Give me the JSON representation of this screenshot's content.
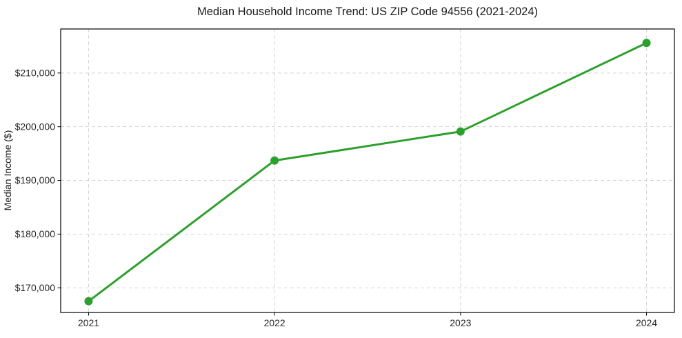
{
  "chart_data": {
    "type": "line",
    "title": "Median Household Income Trend: US ZIP Code 94556 (2021-2024)",
    "xlabel": "",
    "ylabel": "Median Income ($)",
    "x": [
      2021,
      2022,
      2023,
      2024
    ],
    "values": [
      167500,
      193700,
      199100,
      215600
    ],
    "xticks": {
      "values": [
        2021,
        2022,
        2023,
        2024
      ],
      "labels": [
        "2021",
        "2022",
        "2023",
        "2024"
      ]
    },
    "yticks": {
      "values": [
        170000,
        180000,
        190000,
        200000,
        210000
      ],
      "labels": [
        "$170,000",
        "$180,000",
        "$190,000",
        "$200,000",
        "$210,000"
      ]
    },
    "xlim": [
      2020.85,
      2024.15
    ],
    "ylim": [
      165400,
      218200
    ],
    "grid": true,
    "grid_style": "dashed",
    "legend": false,
    "marker": "circle",
    "colors": {
      "line": "#2ca02c",
      "marker": "#2ca02c",
      "grid": "#d4d4d4",
      "axis": "#000000",
      "text": "#1a1a1a",
      "background": "#ffffff"
    }
  }
}
